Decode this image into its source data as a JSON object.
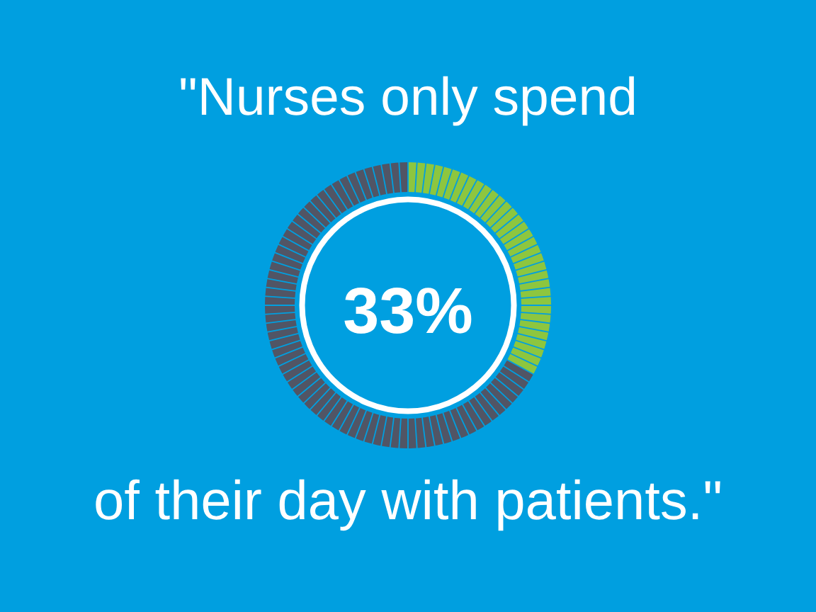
{
  "chart_data": {
    "type": "donut",
    "title": "\"Nurses only spend",
    "annotations": [
      "33%",
      "of their day with patients.\""
    ],
    "categories": [
      null,
      null
    ],
    "values": [
      33,
      67
    ],
    "colors": [
      "#8dc63f",
      "#515565"
    ]
  }
}
